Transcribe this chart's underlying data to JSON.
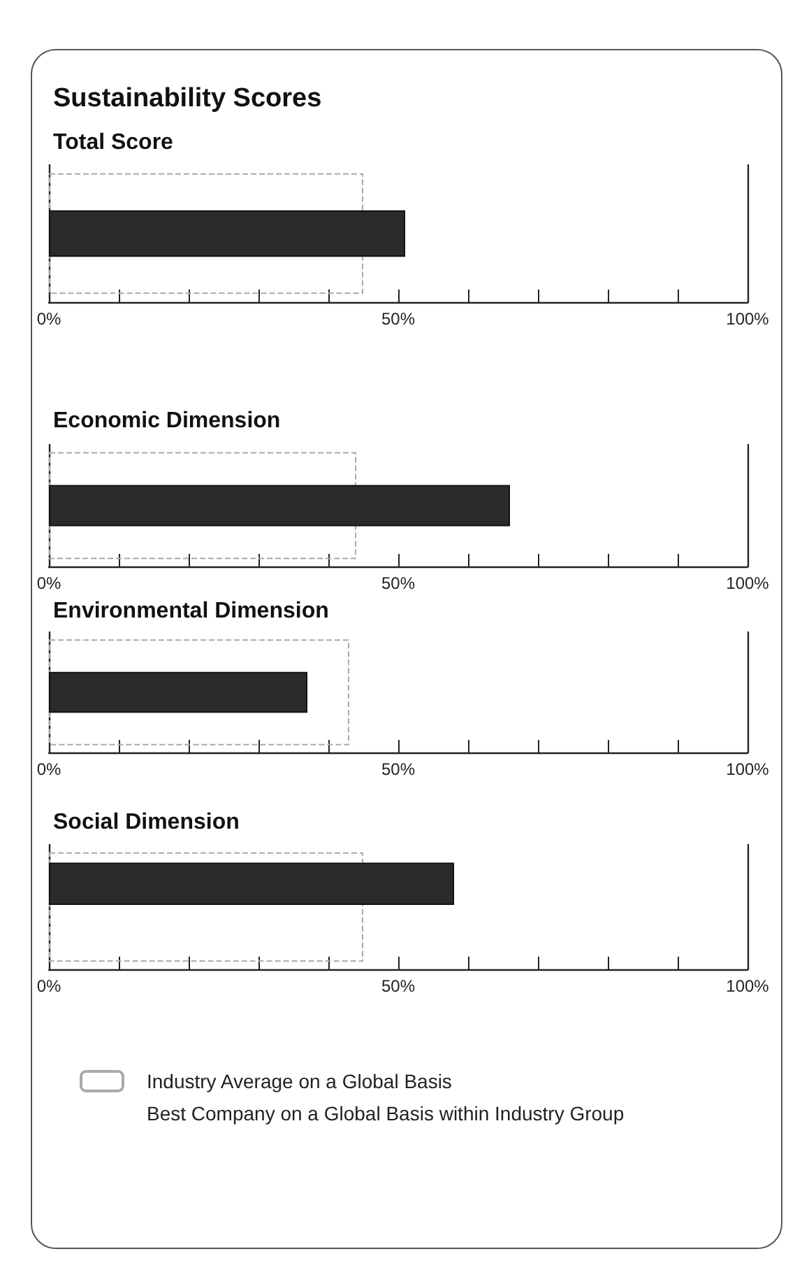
{
  "chart_data": [
    {
      "type": "bar",
      "orientation": "horizontal",
      "title": "Sustainability Scores",
      "subtitle": "Total Score",
      "categories": [
        null
      ],
      "series": [
        {
          "color": "#aaaaaa",
          "line_style": "dashed",
          "values": [
            45
          ]
        },
        {
          "color": "#2b2b2b",
          "values": [
            51
          ]
        }
      ],
      "xlim": [
        0,
        100
      ],
      "xticks": [
        {
          "value": 0,
          "label": "0%"
        },
        {
          "value": 10,
          "label": null
        },
        {
          "value": 20,
          "label": null
        },
        {
          "value": 30,
          "label": null
        },
        {
          "value": 40,
          "label": null
        },
        {
          "value": 50,
          "label": "50%"
        },
        {
          "value": 60,
          "label": null
        },
        {
          "value": 70,
          "label": null
        },
        {
          "value": 80,
          "label": null
        },
        {
          "value": 90,
          "label": null
        },
        {
          "value": 100,
          "label": "100%"
        }
      ],
      "grid": false,
      "legend": false
    },
    {
      "type": "bar",
      "orientation": "horizontal",
      "title": "Economic Dimension",
      "categories": [
        null
      ],
      "series": [
        {
          "color": "#aaaaaa",
          "line_style": "dashed",
          "values": [
            44
          ]
        },
        {
          "color": "#2b2b2b",
          "values": [
            66
          ]
        }
      ],
      "xlim": [
        0,
        100
      ],
      "xticks": [
        {
          "value": 0,
          "label": "0%"
        },
        {
          "value": 10,
          "label": null
        },
        {
          "value": 20,
          "label": null
        },
        {
          "value": 30,
          "label": null
        },
        {
          "value": 40,
          "label": null
        },
        {
          "value": 50,
          "label": "50%"
        },
        {
          "value": 60,
          "label": null
        },
        {
          "value": 70,
          "label": null
        },
        {
          "value": 80,
          "label": null
        },
        {
          "value": 90,
          "label": null
        },
        {
          "value": 100,
          "label": "100%"
        }
      ],
      "grid": false,
      "legend": false
    },
    {
      "type": "bar",
      "orientation": "horizontal",
      "title": "Environmental Dimension",
      "categories": [
        null
      ],
      "series": [
        {
          "color": "#aaaaaa",
          "line_style": "dashed",
          "values": [
            43
          ]
        },
        {
          "color": "#2b2b2b",
          "values": [
            37
          ]
        }
      ],
      "xlim": [
        0,
        100
      ],
      "xticks": [
        {
          "value": 0,
          "label": "0%"
        },
        {
          "value": 10,
          "label": null
        },
        {
          "value": 20,
          "label": null
        },
        {
          "value": 30,
          "label": null
        },
        {
          "value": 40,
          "label": null
        },
        {
          "value": 50,
          "label": "50%"
        },
        {
          "value": 60,
          "label": null
        },
        {
          "value": 70,
          "label": null
        },
        {
          "value": 80,
          "label": null
        },
        {
          "value": 90,
          "label": null
        },
        {
          "value": 100,
          "label": "100%"
        }
      ],
      "grid": false,
      "legend": false
    },
    {
      "type": "bar",
      "orientation": "horizontal",
      "title": "Social Dimension",
      "categories": [
        null
      ],
      "series": [
        {
          "name": "Industry Average on a Global Basis",
          "color": "#aaaaaa",
          "line_style": "dashed",
          "values": [
            45
          ]
        },
        {
          "color": "#2b2b2b",
          "values": [
            58
          ]
        },
        {
          "name": "Best Company on a Global Basis within Industry Group",
          "values": [
            null
          ]
        }
      ],
      "xlim": [
        0,
        100
      ],
      "xticks": [
        {
          "value": 0,
          "label": "0%"
        },
        {
          "value": 10,
          "label": null
        },
        {
          "value": 20,
          "label": null
        },
        {
          "value": 30,
          "label": null
        },
        {
          "value": 40,
          "label": null
        },
        {
          "value": 50,
          "label": "50%"
        },
        {
          "value": 60,
          "label": null
        },
        {
          "value": 70,
          "label": null
        },
        {
          "value": 80,
          "label": null
        },
        {
          "value": 90,
          "label": null
        },
        {
          "value": 100,
          "label": "100%"
        }
      ],
      "grid": false,
      "legend": "bottom"
    }
  ]
}
